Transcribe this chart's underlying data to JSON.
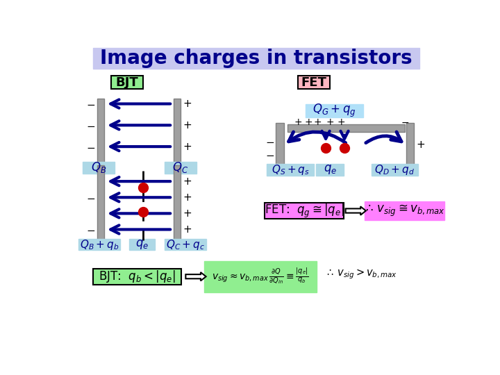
{
  "title": "Image charges in transistors",
  "title_bg": "#c8c8f0",
  "title_color": "#00008B",
  "bg_color": "#ffffff",
  "bjt_label": "BJT",
  "bjt_label_bg": "#90ee90",
  "fet_label": "FET",
  "fet_label_bg": "#ffb6c1",
  "plate_color": "#a0a0a0",
  "arrow_color": "#00008B",
  "dot_color": "#cc0000",
  "dashed_color": "#000000",
  "light_blue": "#add8e6",
  "green_bg": "#90ee90",
  "pink_bg": "#ff80ff"
}
